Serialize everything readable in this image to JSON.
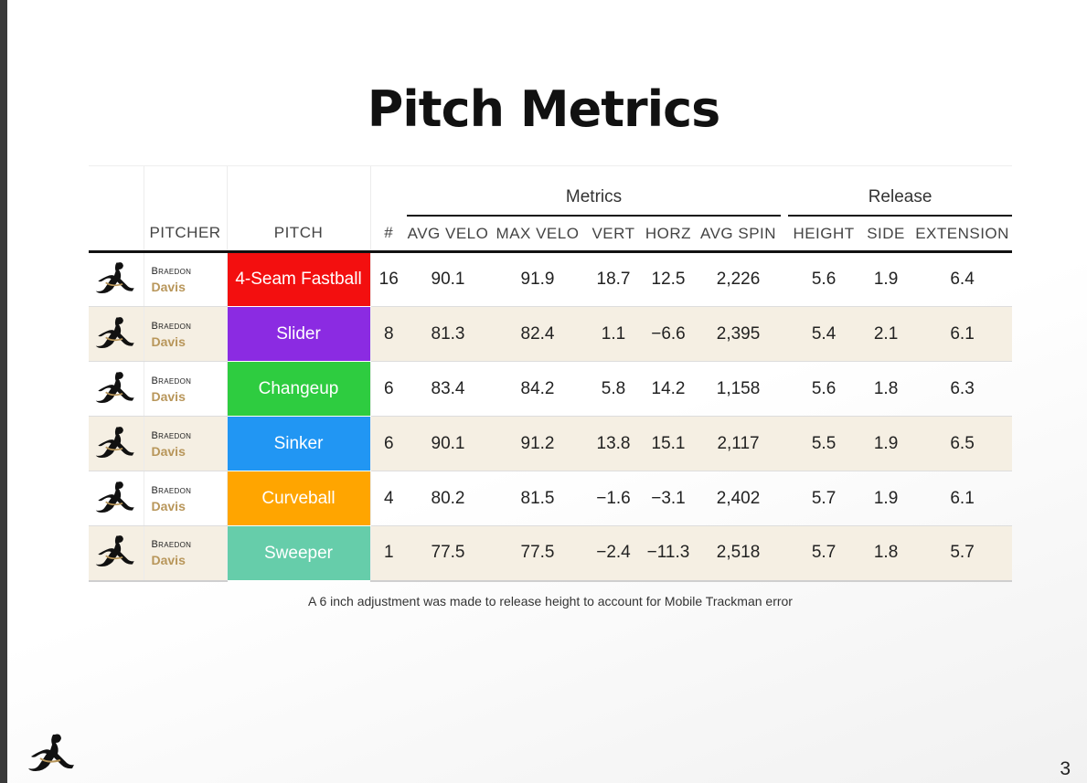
{
  "title": "Pitch Metrics",
  "groups": {
    "metrics": "Metrics",
    "release": "Release"
  },
  "columns": {
    "pitcher": "PITCHER",
    "pitch": "PITCH",
    "count": "#",
    "avg_velo": "AVG VELO",
    "max_velo": "MAX VELO",
    "vert": "VERT",
    "horz": "HORZ",
    "avg_spin": "AVG SPIN",
    "height": "HEIGHT",
    "side": "SIDE",
    "extension": "EXTENSION"
  },
  "rows": [
    {
      "first": "Braedon",
      "last": "Davis",
      "pitch": "4-Seam Fastball",
      "color": "#f30f0f",
      "count": "16",
      "avg_velo": "90.1",
      "max_velo": "91.9",
      "vert": "18.7",
      "horz": "12.5",
      "avg_spin": "2,226",
      "height": "5.6",
      "side": "1.9",
      "extension": "6.4"
    },
    {
      "first": "Braedon",
      "last": "Davis",
      "pitch": "Slider",
      "color": "#8b2be2",
      "count": "8",
      "avg_velo": "81.3",
      "max_velo": "82.4",
      "vert": "1.1",
      "horz": "−6.6",
      "avg_spin": "2,395",
      "height": "5.4",
      "side": "2.1",
      "extension": "6.1"
    },
    {
      "first": "Braedon",
      "last": "Davis",
      "pitch": "Changeup",
      "color": "#2ecc40",
      "count": "6",
      "avg_velo": "83.4",
      "max_velo": "84.2",
      "vert": "5.8",
      "horz": "14.2",
      "avg_spin": "1,158",
      "height": "5.6",
      "side": "1.8",
      "extension": "6.3"
    },
    {
      "first": "Braedon",
      "last": "Davis",
      "pitch": "Sinker",
      "color": "#2196f3",
      "count": "6",
      "avg_velo": "90.1",
      "max_velo": "91.2",
      "vert": "13.8",
      "horz": "15.1",
      "avg_spin": "2,117",
      "height": "5.5",
      "side": "1.9",
      "extension": "6.5"
    },
    {
      "first": "Braedon",
      "last": "Davis",
      "pitch": "Curveball",
      "color": "#ffa500",
      "count": "4",
      "avg_velo": "80.2",
      "max_velo": "81.5",
      "vert": "−1.6",
      "horz": "−3.1",
      "avg_spin": "2,402",
      "height": "5.7",
      "side": "1.9",
      "extension": "6.1"
    },
    {
      "first": "Braedon",
      "last": "Davis",
      "pitch": "Sweeper",
      "color": "#66cdaa",
      "count": "1",
      "avg_velo": "77.5",
      "max_velo": "77.5",
      "vert": "−2.4",
      "horz": "−11.3",
      "avg_spin": "2,518",
      "height": "5.7",
      "side": "1.8",
      "extension": "5.7"
    }
  ],
  "note": "A 6 inch adjustment was made to release height to account for Mobile Trackman error",
  "page_number": "3",
  "logo_icon": "pitcher-silhouette-icon"
}
